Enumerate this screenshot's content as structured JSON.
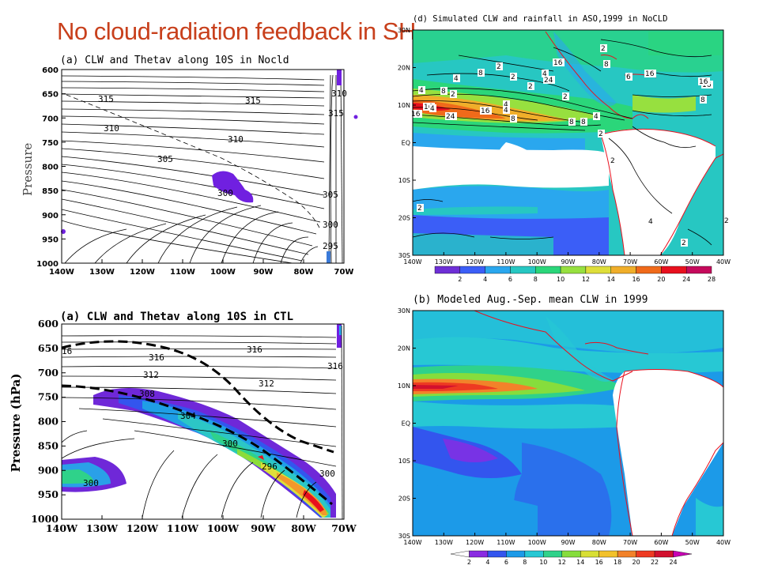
{
  "slide_title": "No cloud-radiation feedback in SH",
  "chart_data": [
    {
      "id": "p1",
      "type": "contour",
      "title": "(a) CLW and Thetav along 10S in Nocld",
      "xlabel": "",
      "ylabel": "Pressure",
      "x_ticks": [
        "140W",
        "130W",
        "120W",
        "110W",
        "100W",
        "90W",
        "80W",
        "70W"
      ],
      "y_ticks": [
        "600",
        "650",
        "700",
        "750",
        "800",
        "850",
        "900",
        "950",
        "1000"
      ],
      "ylim": [
        1000,
        600
      ],
      "contour_labels": [
        "315",
        "315",
        "310",
        "310",
        "310",
        "315",
        "305",
        "300",
        "305",
        "300",
        "295"
      ]
    },
    {
      "id": "p2",
      "type": "contour",
      "title": "(a) CLW and Thetav along 10S in CTL",
      "xlabel": "",
      "ylabel": "Pressure (hPa)",
      "x_ticks": [
        "140W",
        "130W",
        "120W",
        "110W",
        "100W",
        "90W",
        "80W",
        "70W"
      ],
      "y_ticks": [
        "600",
        "650",
        "700",
        "750",
        "800",
        "850",
        "900",
        "950",
        "1000"
      ],
      "ylim": [
        1000,
        600
      ],
      "contour_labels": [
        "16",
        "316",
        "316",
        "316",
        "312",
        "312",
        "308",
        "304",
        "300",
        "296",
        "300",
        "300"
      ]
    },
    {
      "id": "p3",
      "type": "heatmap",
      "title": "(d) Simulated CLW and rainfall in ASO,1999 in NoCLD",
      "x_ticks": [
        "140W",
        "130W",
        "120W",
        "110W",
        "100W",
        "90W",
        "80W",
        "70W",
        "60W",
        "50W",
        "40W"
      ],
      "y_ticks": [
        "30N",
        "20N",
        "10N",
        "EQ",
        "10S",
        "20S",
        "30S"
      ],
      "colorbar": [
        "2",
        "4",
        "6",
        "8",
        "10",
        "12",
        "14",
        "16",
        "20",
        "24",
        "28"
      ],
      "colors": [
        "#6e2fd6",
        "#3b5ef7",
        "#2aa7ee",
        "#27c7c2",
        "#2bd67a",
        "#97e03f",
        "#dede3a",
        "#f0ae2a",
        "#f06a1a",
        "#e8101e",
        "#c50a5c"
      ],
      "contour_labels": [
        "2",
        "4",
        "8",
        "4",
        "8",
        "2",
        "4",
        "16",
        "24",
        "2",
        "8",
        "6",
        "16",
        "16",
        "8",
        "16",
        "16",
        "2",
        "4",
        "2",
        "2",
        "4",
        "8",
        "8",
        "4",
        "16",
        "24",
        "16",
        "8",
        "4",
        "2",
        "2",
        "4",
        "2",
        "2",
        "2"
      ]
    },
    {
      "id": "p4",
      "type": "heatmap",
      "title": "(b) Modeled Aug.-Sep. mean CLW in 1999",
      "x_ticks": [
        "140W",
        "130W",
        "120W",
        "110W",
        "100W",
        "90W",
        "80W",
        "70W",
        "60W",
        "50W",
        "40W"
      ],
      "y_ticks": [
        "30N",
        "20N",
        "10N",
        "EQ",
        "10S",
        "20S",
        "30S"
      ],
      "colorbar": [
        "2",
        "4",
        "6",
        "8",
        "10",
        "12",
        "14",
        "16",
        "18",
        "20",
        "22",
        "24"
      ],
      "colors": [
        "#ffffff",
        "#8a2be2",
        "#3355ee",
        "#1c9ae8",
        "#27c8d4",
        "#2fd28a",
        "#86dd3c",
        "#d8df34",
        "#f2c12a",
        "#f2822a",
        "#ee3a22",
        "#d2102e",
        "#c800b4"
      ]
    }
  ]
}
